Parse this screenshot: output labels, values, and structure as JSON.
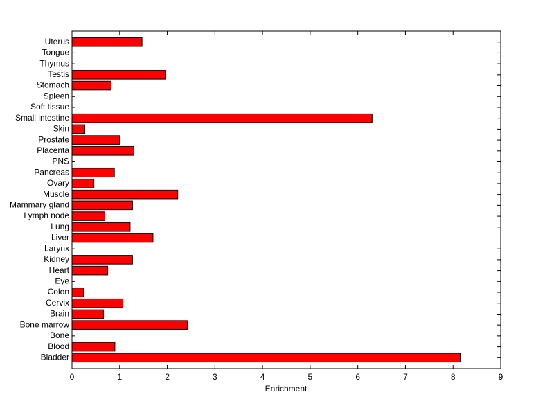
{
  "chart_data": {
    "type": "barh",
    "xlabel": "Enrichment",
    "color": "#ff0000",
    "categories": [
      "Bladder",
      "Blood",
      "Bone",
      "Bone marrow",
      "Brain",
      "Cervix",
      "Colon",
      "Eye",
      "Heart",
      "Kidney",
      "Larynx",
      "Liver",
      "Lung",
      "Lymph node",
      "Mammary gland",
      "Muscle",
      "Ovary",
      "Pancreas",
      "PNS",
      "Placenta",
      "Prostate",
      "Skin",
      "Small intestine",
      "Soft tissue",
      "Spleen",
      "Stomach",
      "Testis",
      "Thymus",
      "Tongue",
      "Uterus"
    ],
    "values": [
      8.15,
      0.9,
      0,
      2.42,
      0.66,
      1.07,
      0.24,
      0,
      0.75,
      1.27,
      0,
      1.7,
      1.22,
      0.69,
      1.27,
      2.22,
      0.46,
      0.89,
      0,
      1.3,
      1.0,
      0.27,
      6.3,
      0,
      0,
      0.82,
      1.96,
      0,
      0,
      1.47
    ],
    "xlim": [
      0,
      9
    ],
    "xticks": [
      0,
      1,
      2,
      3,
      4,
      5,
      6,
      7,
      8,
      9
    ]
  }
}
